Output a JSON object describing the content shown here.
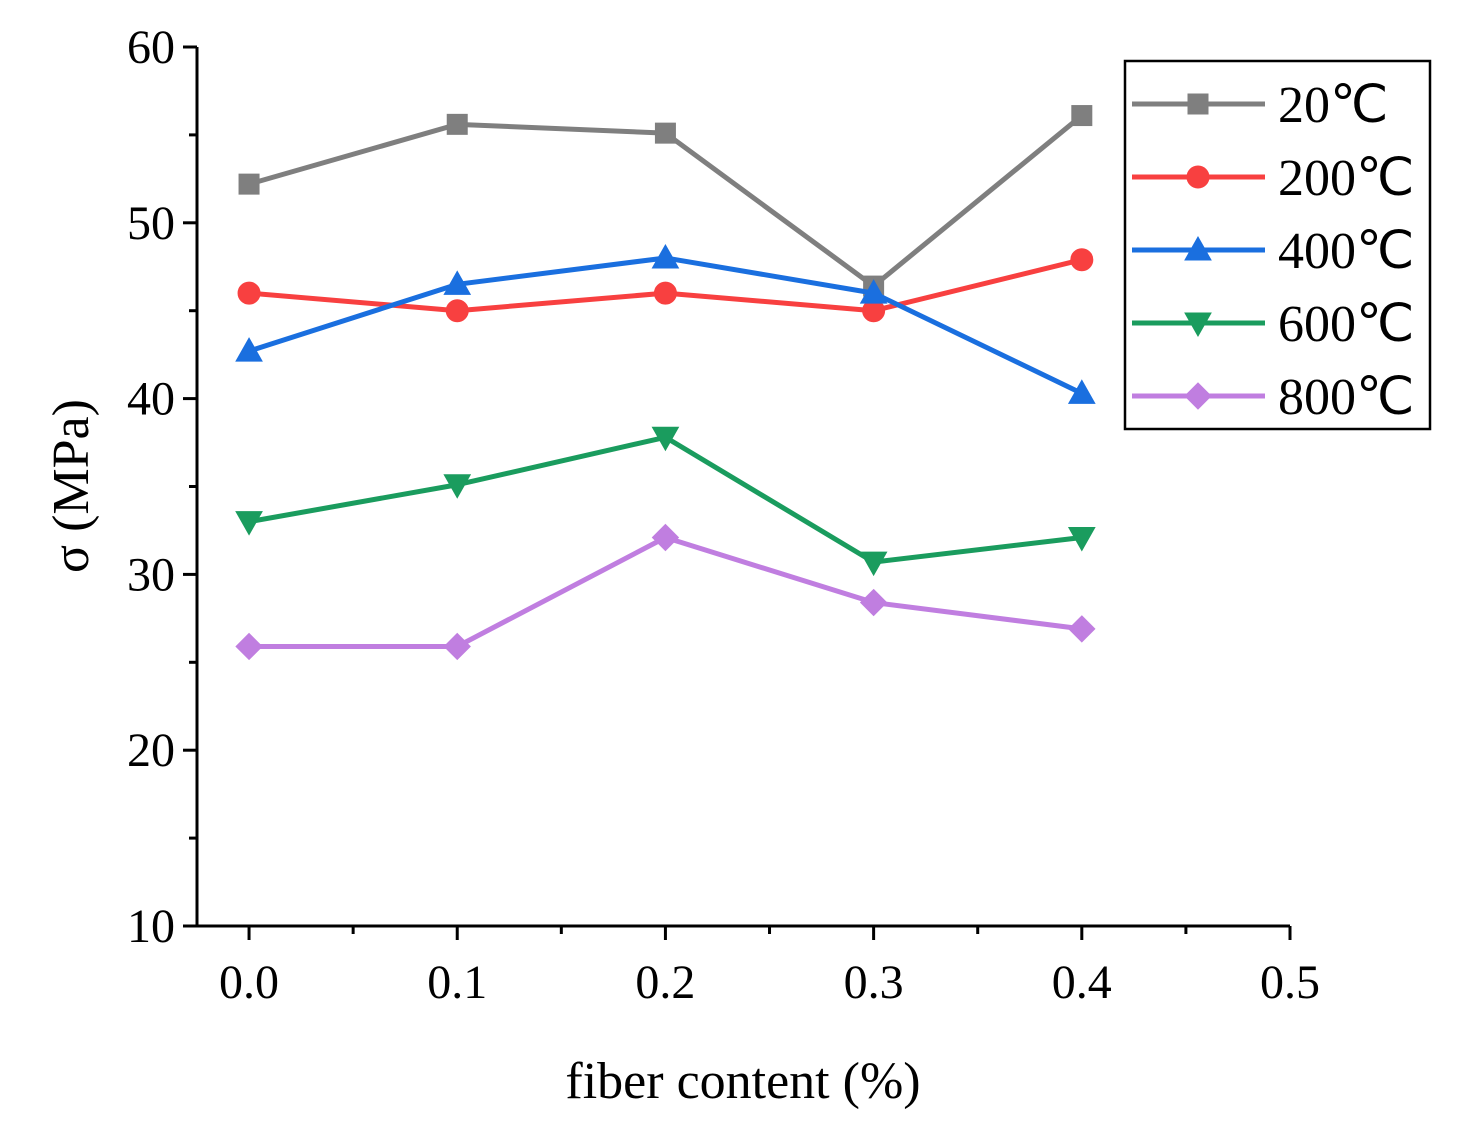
{
  "chart_data": {
    "type": "line",
    "title": "",
    "xlabel": "fiber content (%)",
    "ylabel": "σ (MPa)",
    "xlim": [
      -0.025,
      0.5
    ],
    "ylim": [
      10,
      60
    ],
    "x_ticks": [
      "0.0",
      "0.1",
      "0.2",
      "0.3",
      "0.4",
      "0.5"
    ],
    "y_ticks": [
      "10",
      "20",
      "30",
      "40",
      "50",
      "60"
    ],
    "grid": false,
    "legend_position": "top-right",
    "x": [
      0.0,
      0.1,
      0.2,
      0.3,
      0.4
    ],
    "series": [
      {
        "name": "20℃",
        "marker": "square",
        "color": "#7f7f7f",
        "values": [
          52.2,
          55.6,
          55.1,
          46.4,
          56.1
        ]
      },
      {
        "name": "200℃",
        "marker": "circle",
        "color": "#f84040",
        "values": [
          46.0,
          45.0,
          46.0,
          45.0,
          47.9
        ]
      },
      {
        "name": "400℃",
        "marker": "triangle-up",
        "color": "#1a6fdf",
        "values": [
          42.7,
          46.5,
          48.0,
          46.0,
          40.3
        ]
      },
      {
        "name": "600℃",
        "marker": "triangle-down",
        "color": "#1a9c5e",
        "values": [
          33.0,
          35.1,
          37.8,
          30.7,
          32.1
        ]
      },
      {
        "name": "800℃",
        "marker": "diamond",
        "color": "#c07ee0",
        "values": [
          25.9,
          25.9,
          32.1,
          28.4,
          26.9
        ]
      }
    ]
  }
}
